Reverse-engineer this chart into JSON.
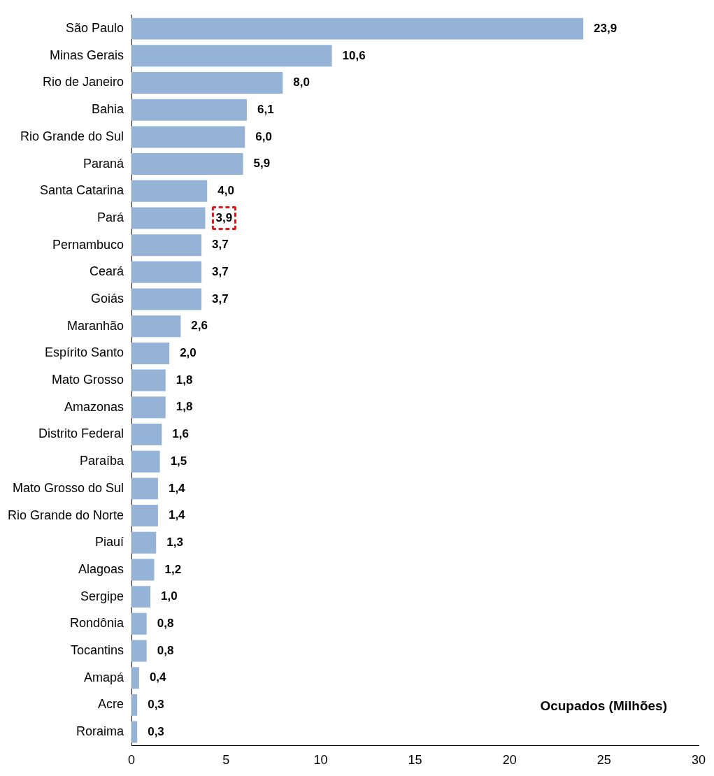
{
  "chart_data": {
    "type": "bar",
    "orientation": "horizontal",
    "xlabel": "Ocupados (Milhões)",
    "categories": [
      "São Paulo",
      "Minas Gerais",
      "Rio de Janeiro",
      "Bahia",
      "Rio Grande do Sul",
      "Paraná",
      "Santa Catarina",
      "Pará",
      "Pernambuco",
      "Ceará",
      "Goiás",
      "Maranhão",
      "Espírito Santo",
      "Mato Grosso",
      "Amazonas",
      "Distrito Federal",
      "Paraíba",
      "Mato Grosso do Sul",
      "Rio Grande do Norte",
      "Piauí",
      "Alagoas",
      "Sergipe",
      "Rondônia",
      "Tocantins",
      "Amapá",
      "Acre",
      "Roraima"
    ],
    "values": [
      23.9,
      10.6,
      8.0,
      6.1,
      6.0,
      5.9,
      4.0,
      3.9,
      3.7,
      3.7,
      3.7,
      2.6,
      2.0,
      1.8,
      1.8,
      1.6,
      1.5,
      1.4,
      1.4,
      1.3,
      1.2,
      1.0,
      0.8,
      0.8,
      0.4,
      0.3,
      0.3
    ],
    "value_labels": [
      "23,9",
      "10,6",
      "8,0",
      "6,1",
      "6,0",
      "5,9",
      "4,0",
      "3,9",
      "3,7",
      "3,7",
      "3,7",
      "2,6",
      "2,0",
      "1,8",
      "1,8",
      "1,6",
      "1,5",
      "1,4",
      "1,4",
      "1,3",
      "1,2",
      "1,0",
      "0,8",
      "0,8",
      "0,4",
      "0,3",
      "0,3"
    ],
    "color": "#95b3d7",
    "xlim": [
      0,
      30
    ],
    "xticks": [
      0,
      5,
      10,
      15,
      20,
      25,
      30
    ],
    "grid": false,
    "legend": false
  }
}
